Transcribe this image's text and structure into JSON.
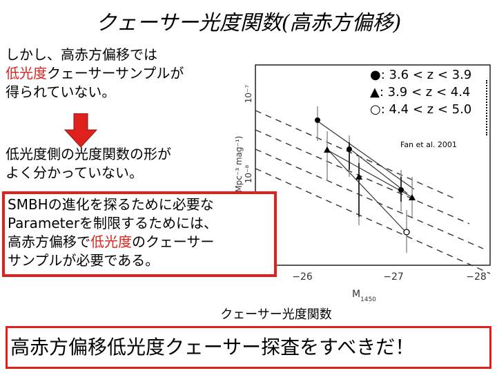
{
  "title": "クェーサー光度関数(高赤方偏移)",
  "left_text": {
    "line1": "しかし、高赤方偏移では",
    "line2_red": "低光度",
    "line2_rest": "クェーサーサンプルが",
    "line3": "得られていない。"
  },
  "arrow_icon": "red-down-arrow-icon",
  "conclusion": {
    "line1": "低光度側の光度関数の形が",
    "line2": "よく分かっていない。"
  },
  "boxed_text": {
    "line1": "SMBHの進化を探るために必要な",
    "line2": "Parameterを制限するためには、",
    "line3_a": "高赤方偏移で",
    "line3_red": "低光度",
    "line3_b": "のクェーサー",
    "line4": "サンプルが必要である。"
  },
  "legend": {
    "item1": "●: 3.6 < z < 3.9",
    "item2": "▲: 3.9 < z < 4.4",
    "item3": "○: 4.4 < z < 5.0"
  },
  "citation": "Fan et al. 2001",
  "axis_x": {
    "label": "M",
    "sub": "1450",
    "ticks": [
      "−26",
      "−27",
      "−28"
    ]
  },
  "axis_y": {
    "label": "(Mpc⁻³ mag⁻¹)",
    "tick_top": "10⁻⁷",
    "tick_mid": "10⁻⁸"
  },
  "chart_data": {
    "type": "line",
    "xlabel": "M1450",
    "ylabel": "(Mpc⁻³ mag⁻¹)",
    "x_ticks": [
      -26,
      -27,
      -28
    ],
    "y_ticks": [
      "10⁻⁷",
      "10⁻⁸"
    ],
    "series": [
      {
        "name": "●: 3.6 < z < 3.9",
        "marker": "filled-circle"
      },
      {
        "name": "▲: 3.9 < z < 4.4",
        "marker": "filled-triangle"
      },
      {
        "name": "○: 4.4 < z < 5.0",
        "marker": "open-circle"
      }
    ]
  },
  "caption": "クェーサー光度関数",
  "bottom_banner": "高赤方偏移低光度クェーサー探査をすべきだ！",
  "colors": {
    "accent": "#e0211b"
  }
}
